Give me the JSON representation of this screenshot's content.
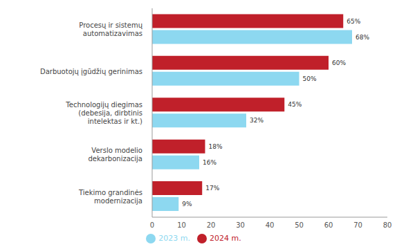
{
  "chart_data": {
    "type": "bar",
    "orientation": "horizontal",
    "categories": [
      "Procesų ir sistemų automatizavimas",
      "Darbuotojų įgūdžių gerinimas",
      "Technologijų diegimas (debesija, dirbtinis intelektas ir kt.)",
      "Verslo modelio dekarbonizacija",
      "Tiekimo grandinės modernizacija"
    ],
    "series": [
      {
        "name": "2024 m.",
        "color": "#c0202a",
        "values": [
          65,
          60,
          45,
          18,
          17
        ],
        "value_labels": [
          "65%",
          "60%",
          "45%",
          "18%",
          "17%"
        ]
      },
      {
        "name": "2023 m.",
        "color": "#8dd8f0",
        "values": [
          68,
          50,
          32,
          16,
          9
        ],
        "value_labels": [
          "68%",
          "50%",
          "32%",
          "16%",
          "9%"
        ]
      }
    ],
    "xlim": [
      0,
      80
    ],
    "xticks": [
      0,
      10,
      20,
      30,
      40,
      50,
      60,
      70,
      80
    ],
    "data_labels": true,
    "legend": "bottom",
    "grid": false
  }
}
